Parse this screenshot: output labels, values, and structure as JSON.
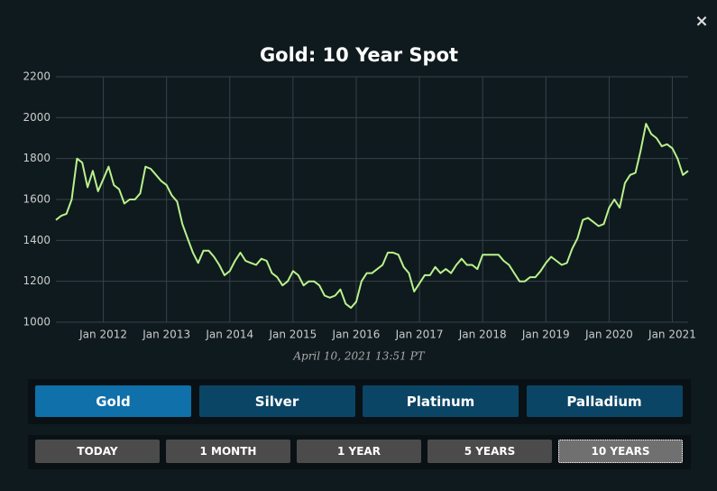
{
  "chart_data": {
    "type": "line",
    "title": "Gold: 10 Year Spot",
    "color": "#b9f28c",
    "grid": true,
    "x": [
      "2011-04",
      "2011-05",
      "2011-06",
      "2011-07",
      "2011-08",
      "2011-09",
      "2011-10",
      "2011-11",
      "2011-12",
      "2012-01",
      "2012-02",
      "2012-03",
      "2012-04",
      "2012-05",
      "2012-06",
      "2012-07",
      "2012-08",
      "2012-09",
      "2012-10",
      "2012-11",
      "2012-12",
      "2013-01",
      "2013-02",
      "2013-03",
      "2013-04",
      "2013-05",
      "2013-06",
      "2013-07",
      "2013-08",
      "2013-09",
      "2013-10",
      "2013-11",
      "2013-12",
      "2014-01",
      "2014-02",
      "2014-03",
      "2014-04",
      "2014-05",
      "2014-06",
      "2014-07",
      "2014-08",
      "2014-09",
      "2014-10",
      "2014-11",
      "2014-12",
      "2015-01",
      "2015-02",
      "2015-03",
      "2015-04",
      "2015-05",
      "2015-06",
      "2015-07",
      "2015-08",
      "2015-09",
      "2015-10",
      "2015-11",
      "2015-12",
      "2016-01",
      "2016-02",
      "2016-03",
      "2016-04",
      "2016-05",
      "2016-06",
      "2016-07",
      "2016-08",
      "2016-09",
      "2016-10",
      "2016-11",
      "2016-12",
      "2017-01",
      "2017-02",
      "2017-03",
      "2017-04",
      "2017-05",
      "2017-06",
      "2017-07",
      "2017-08",
      "2017-09",
      "2017-10",
      "2017-11",
      "2017-12",
      "2018-01",
      "2018-02",
      "2018-03",
      "2018-04",
      "2018-05",
      "2018-06",
      "2018-07",
      "2018-08",
      "2018-09",
      "2018-10",
      "2018-11",
      "2018-12",
      "2019-01",
      "2019-02",
      "2019-03",
      "2019-04",
      "2019-05",
      "2019-06",
      "2019-07",
      "2019-08",
      "2019-09",
      "2019-10",
      "2019-11",
      "2019-12",
      "2020-01",
      "2020-02",
      "2020-03",
      "2020-04",
      "2020-05",
      "2020-06",
      "2020-07",
      "2020-08",
      "2020-09",
      "2020-10",
      "2020-11",
      "2020-12",
      "2021-01",
      "2021-02",
      "2021-03",
      "2021-04"
    ],
    "values": [
      1500,
      1520,
      1530,
      1600,
      1800,
      1780,
      1660,
      1740,
      1640,
      1700,
      1760,
      1670,
      1650,
      1580,
      1600,
      1600,
      1630,
      1760,
      1750,
      1720,
      1690,
      1670,
      1620,
      1590,
      1480,
      1410,
      1340,
      1290,
      1350,
      1350,
      1320,
      1280,
      1230,
      1250,
      1300,
      1340,
      1300,
      1290,
      1280,
      1310,
      1300,
      1240,
      1220,
      1180,
      1200,
      1250,
      1230,
      1180,
      1200,
      1200,
      1180,
      1130,
      1120,
      1130,
      1160,
      1090,
      1070,
      1100,
      1200,
      1240,
      1240,
      1260,
      1280,
      1340,
      1340,
      1330,
      1270,
      1240,
      1150,
      1190,
      1230,
      1230,
      1270,
      1240,
      1260,
      1240,
      1280,
      1310,
      1280,
      1280,
      1260,
      1330,
      1330,
      1330,
      1330,
      1300,
      1280,
      1240,
      1200,
      1200,
      1220,
      1220,
      1250,
      1290,
      1320,
      1300,
      1280,
      1290,
      1360,
      1410,
      1500,
      1510,
      1490,
      1470,
      1480,
      1560,
      1600,
      1560,
      1680,
      1720,
      1730,
      1840,
      1970,
      1920,
      1900,
      1860,
      1870,
      1850,
      1800,
      1720,
      1740
    ],
    "xlim": [
      "2011-04",
      "2021-04"
    ],
    "xticks": [
      {
        "value": "2012-01",
        "label": "Jan 2012"
      },
      {
        "value": "2013-01",
        "label": "Jan 2013"
      },
      {
        "value": "2014-01",
        "label": "Jan 2014"
      },
      {
        "value": "2015-01",
        "label": "Jan 2015"
      },
      {
        "value": "2016-01",
        "label": "Jan 2016"
      },
      {
        "value": "2017-01",
        "label": "Jan 2017"
      },
      {
        "value": "2018-01",
        "label": "Jan 2018"
      },
      {
        "value": "2019-01",
        "label": "Jan 2019"
      },
      {
        "value": "2020-01",
        "label": "Jan 2020"
      },
      {
        "value": "2021-01",
        "label": "Jan 2021"
      }
    ],
    "ylim": [
      1000,
      2200
    ],
    "yticks": [
      1000,
      1200,
      1400,
      1600,
      1800,
      2000,
      2200
    ]
  },
  "timestamp": "April 10, 2021 13:51 PT",
  "metals": [
    "Gold",
    "Silver",
    "Platinum",
    "Palladium"
  ],
  "ranges": [
    "TODAY",
    "1 MONTH",
    "1 YEAR",
    "5 YEARS",
    "10 YEARS"
  ]
}
